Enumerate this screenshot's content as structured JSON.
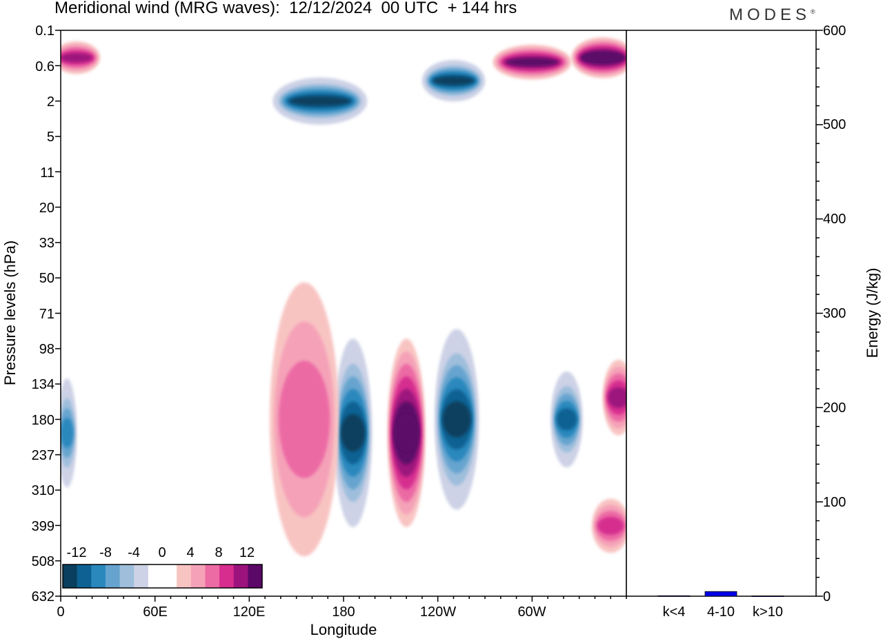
{
  "title": "Meridional wind (MRG waves):  12/12/2024  00 UTC  + 144 hrs",
  "brand": "MODES",
  "brand_mark": "®",
  "colors": {
    "neg": [
      "#0a3f5e",
      "#0d6293",
      "#2a88bd",
      "#66a4cf",
      "#9ebedc",
      "#cdd2e6"
    ],
    "pos": [
      "#f8c4c2",
      "#f5a2b8",
      "#ec6ba4",
      "#d62d8f",
      "#9c137d",
      "#5c0868"
    ],
    "frame": "#000000",
    "bar": "#0000e6"
  },
  "chart_data": [
    {
      "type": "heatmap",
      "xlabel": "Longitude",
      "ylabel": "Pressure levels (hPa)",
      "x_ticks": [
        "0",
        "60E",
        "120E",
        "180",
        "120W",
        "60W"
      ],
      "x_tick_lon": [
        0,
        60,
        120,
        180,
        240,
        300
      ],
      "xlim": [
        0,
        360
      ],
      "y_ticks": [
        "0.1",
        "0.6",
        "2",
        "5",
        "11",
        "20",
        "33",
        "50",
        "71",
        "98",
        "134",
        "180",
        "237",
        "310",
        "399",
        "508",
        "632"
      ],
      "colorbar": {
        "labels": [
          "-12",
          "-8",
          "-4",
          "0",
          "4",
          "8",
          "12"
        ],
        "levels": [
          -14,
          -12,
          -10,
          -8,
          -6,
          -4,
          -2,
          2,
          4,
          6,
          8,
          10,
          12,
          14
        ]
      },
      "features": [
        {
          "lon": 186,
          "level": 200,
          "value": -14,
          "lon_width": 12,
          "level_span": 250
        },
        {
          "lon": 220,
          "level": 200,
          "value": 14,
          "lon_width": 12,
          "level_span": 250
        },
        {
          "lon": 252,
          "level": 180,
          "value": -14,
          "lon_width": 14,
          "level_span": 220
        },
        {
          "lon": 155,
          "level": 180,
          "value": 7,
          "lon_width": 22,
          "level_span": 300
        },
        {
          "lon": 322,
          "level": 180,
          "value": -12,
          "lon_width": 10,
          "level_span": 120
        },
        {
          "lon": 355,
          "level": 150,
          "value": 10,
          "lon_width": 10,
          "level_span": 80
        },
        {
          "lon": 4,
          "level": 200,
          "value": -11,
          "lon_width": 6,
          "level_span": 150
        },
        {
          "lon": 165,
          "level": 2,
          "value": -14,
          "lon_width": 30,
          "level_span": 2
        },
        {
          "lon": 250,
          "level": 1,
          "value": -14,
          "lon_width": 20,
          "level_span": 1
        },
        {
          "lon": 300,
          "level": 0.5,
          "value": 12,
          "lon_width": 25,
          "level_span": 0.5
        },
        {
          "lon": 345,
          "level": 0.4,
          "value": 14,
          "lon_width": 20,
          "level_span": 0.5
        },
        {
          "lon": 10,
          "level": 0.4,
          "value": 10,
          "lon_width": 15,
          "level_span": 0.4
        },
        {
          "lon": 350,
          "level": 400,
          "value": 9,
          "lon_width": 12,
          "level_span": 120
        }
      ]
    },
    {
      "type": "bar",
      "categories": [
        "k<4",
        "4-10",
        "k>10"
      ],
      "values": [
        0.5,
        5,
        0.3
      ],
      "ylabel": "Energy (J/kg)",
      "ylim": [
        0,
        600
      ],
      "y_ticks": [
        "0",
        "100",
        "200",
        "300",
        "400",
        "500",
        "600"
      ]
    }
  ]
}
